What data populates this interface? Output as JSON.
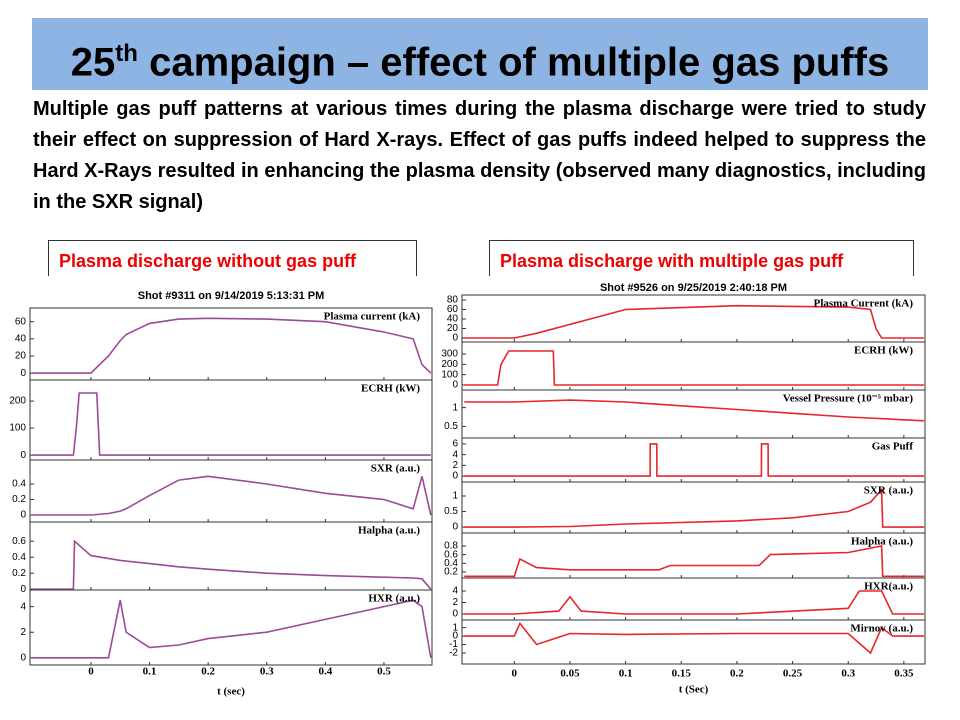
{
  "title": {
    "number": "25",
    "sup": "th",
    "text": "campaign – effect of multiple gas puffs"
  },
  "body": "Multiple gas puff patterns at various times during the plasma discharge were tried to study their effect on suppression of Hard X-rays.  Effect of gas puffs indeed helped to suppress the Hard X-Rays resulted in enhancing the plasma density (observed many diagnostics, including in the SXR signal)",
  "figures": [
    {
      "caption": "Plasma discharge without gas puff",
      "type": "line",
      "shot": "Shot #9311 on 9/14/2019 5:13:31 PM",
      "xlabel": "t (sec)",
      "color": "#9b4a9b",
      "xlim": [
        -0.104,
        0.582
      ],
      "xticks": [
        0,
        0.1,
        0.2,
        0.3,
        0.4,
        0.5
      ],
      "panels": [
        {
          "label": "Plasma current (kA)",
          "ylim": [
            -8,
            76
          ],
          "yticks": [
            0,
            20,
            40,
            60
          ],
          "t": [
            -0.1,
            0,
            0.03,
            0.05,
            0.06,
            0.1,
            0.15,
            0.2,
            0.3,
            0.4,
            0.5,
            0.55,
            0.565,
            0.58
          ],
          "values": [
            0,
            0,
            20,
            38,
            45,
            58,
            63,
            64,
            63,
            60,
            48,
            40,
            10,
            0
          ]
        },
        {
          "label": "ECRH (kW)",
          "ylim": [
            -18,
            278
          ],
          "yticks": [
            0,
            100,
            200
          ],
          "t": [
            -0.1,
            -0.03,
            -0.025,
            -0.02,
            0.01,
            0.015,
            0.58
          ],
          "values": [
            0,
            0,
            100,
            230,
            230,
            0,
            0
          ]
        },
        {
          "label": "SXR (a.u.)",
          "ylim": [
            -0.09,
            0.71
          ],
          "yticks": [
            0,
            0.2,
            0.4
          ],
          "t": [
            -0.1,
            0,
            0.03,
            0.05,
            0.06,
            0.1,
            0.15,
            0.2,
            0.3,
            0.4,
            0.5,
            0.55,
            0.565,
            0.58
          ],
          "values": [
            0,
            0,
            0.02,
            0.05,
            0.08,
            0.25,
            0.45,
            0.5,
            0.4,
            0.28,
            0.2,
            0.08,
            0.5,
            0
          ]
        },
        {
          "label": "Halpha (a.u.)",
          "ylim": [
            -0.01,
            0.84
          ],
          "yticks": [
            0,
            0.2,
            0.4,
            0.6
          ],
          "t": [
            -0.1,
            -0.03,
            -0.028,
            0,
            0.05,
            0.1,
            0.15,
            0.2,
            0.3,
            0.4,
            0.5,
            0.55,
            0.565,
            0.58
          ],
          "values": [
            0,
            0,
            0.6,
            0.42,
            0.36,
            0.32,
            0.28,
            0.25,
            0.2,
            0.17,
            0.15,
            0.14,
            0.13,
            0
          ]
        },
        {
          "label": "HXR (a.u.)",
          "ylim": [
            -0.56,
            5.3
          ],
          "yticks": [
            0,
            2,
            4
          ],
          "t": [
            -0.1,
            0,
            0.03,
            0.05,
            0.06,
            0.1,
            0.15,
            0.2,
            0.3,
            0.4,
            0.5,
            0.55,
            0.565,
            0.58
          ],
          "values": [
            0,
            0,
            0,
            4.5,
            2,
            0.8,
            1,
            1.5,
            2,
            3,
            4,
            4.5,
            4,
            0
          ]
        }
      ]
    },
    {
      "caption": "Plasma discharge with multiple gas puff",
      "type": "line",
      "shot": "Shot #9526 on 9/25/2019 2:40:18 PM",
      "xlabel": "t (Sec)",
      "color": "#e8262a",
      "xlim": [
        -0.047,
        0.369
      ],
      "xticks": [
        0,
        0.05,
        0.1,
        0.15,
        0.2,
        0.25,
        0.3,
        0.35
      ],
      "panels": [
        {
          "label": "Plasma Current (kA)",
          "ylim": [
            -8.4,
            90.5
          ],
          "yticks": [
            0,
            20,
            40,
            60,
            80
          ],
          "t": [
            -0.045,
            0,
            0.02,
            0.1,
            0.2,
            0.3,
            0.32,
            0.325,
            0.33,
            0.368
          ],
          "values": [
            0,
            0,
            10,
            60,
            68,
            65,
            60,
            20,
            0,
            0
          ]
        },
        {
          "label": "ECRH (kW)",
          "ylim": [
            -49,
            417
          ],
          "yticks": [
            0,
            100,
            200,
            300
          ],
          "t": [
            -0.045,
            -0.015,
            -0.012,
            -0.005,
            0.035,
            0.036,
            0.368
          ],
          "values": [
            0,
            0,
            200,
            330,
            330,
            0,
            0
          ]
        },
        {
          "label": "Vessel Pressure (10⁻⁵ mbar)",
          "ylim": [
            0.19,
            1.47
          ],
          "yticks": [
            0.5,
            1
          ],
          "t": [
            -0.045,
            0,
            0.05,
            0.1,
            0.15,
            0.2,
            0.25,
            0.3,
            0.368
          ],
          "values": [
            1.15,
            1.15,
            1.2,
            1.15,
            1.05,
            0.95,
            0.85,
            0.75,
            0.65
          ]
        },
        {
          "label": "Gas Puff",
          "ylim": [
            -1.1,
            7.1
          ],
          "yticks": [
            0,
            2,
            4,
            6
          ],
          "t": [
            -0.045,
            0.122,
            0.1221,
            0.128,
            0.1281,
            0.222,
            0.2221,
            0.228,
            0.2281,
            0.368
          ],
          "values": [
            0,
            0,
            6,
            6,
            0,
            0,
            6,
            6,
            0,
            0
          ]
        },
        {
          "label": "SXR (a.u.)",
          "ylim": [
            -0.19,
            1.45
          ],
          "yticks": [
            0,
            0.5,
            1
          ],
          "t": [
            -0.045,
            0,
            0.05,
            0.1,
            0.2,
            0.25,
            0.3,
            0.32,
            0.33,
            0.331,
            0.368
          ],
          "values": [
            0,
            0,
            0.02,
            0.1,
            0.2,
            0.3,
            0.5,
            0.8,
            1.2,
            0,
            0
          ]
        },
        {
          "label": "Halpha (a.u.)",
          "ylim": [
            0.06,
            1.1
          ],
          "yticks": [
            0.2,
            0.4,
            0.6,
            0.8
          ],
          "t": [
            -0.045,
            0,
            0.005,
            0.02,
            0.05,
            0.1,
            0.13,
            0.14,
            0.2,
            0.22,
            0.23,
            0.3,
            0.33,
            0.331,
            0.368
          ],
          "values": [
            0.1,
            0.1,
            0.5,
            0.3,
            0.25,
            0.25,
            0.25,
            0.35,
            0.35,
            0.35,
            0.6,
            0.65,
            0.8,
            0.1,
            0.1
          ]
        },
        {
          "label": "HXR(a.u.)",
          "ylim": [
            -1.04,
            6.26
          ],
          "yticks": [
            0,
            2,
            4
          ],
          "t": [
            -0.045,
            0,
            0.04,
            0.05,
            0.06,
            0.1,
            0.2,
            0.3,
            0.31,
            0.32,
            0.33,
            0.34,
            0.368
          ],
          "values": [
            0,
            0,
            0.5,
            3,
            0.5,
            0,
            0,
            1,
            4,
            4,
            4,
            0,
            0
          ]
        },
        {
          "label": "Mirnov (a.u.)",
          "ylim": [
            -3.3,
            1.9
          ],
          "yticks": [
            -2,
            -1,
            0,
            1
          ],
          "t": [
            -0.045,
            0,
            0.005,
            0.02,
            0.05,
            0.1,
            0.2,
            0.3,
            0.32,
            0.33,
            0.34,
            0.368
          ],
          "values": [
            0,
            0,
            1.5,
            -1,
            0.3,
            0.2,
            0.3,
            0.3,
            -2,
            1,
            0,
            0
          ]
        }
      ]
    }
  ]
}
